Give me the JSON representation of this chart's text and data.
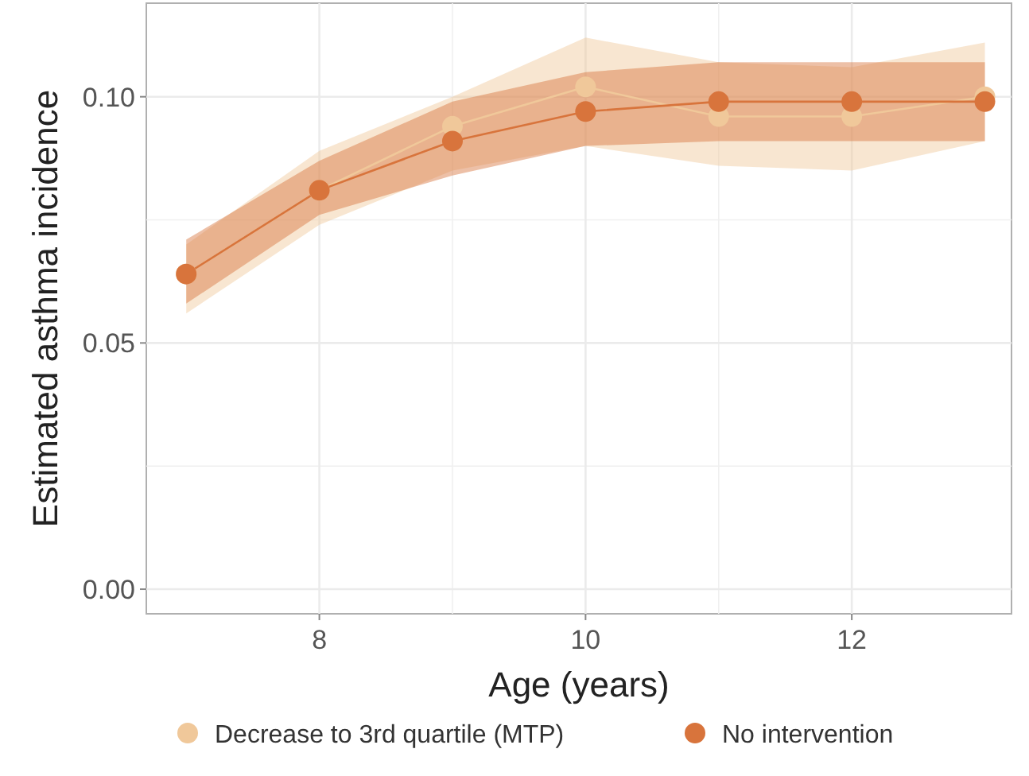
{
  "chart_data": {
    "type": "line",
    "xlabel": "Age (years)",
    "ylabel": "Estimated asthma incidence",
    "x": [
      7,
      8,
      9,
      10,
      11,
      12,
      13
    ],
    "xlim": [
      6.7,
      13.2
    ],
    "xticks": [
      8,
      10,
      12
    ],
    "ylim": [
      -0.005,
      0.119
    ],
    "yticks": [
      {
        "value": 0,
        "label": "0.00"
      },
      {
        "value": 0.05,
        "label": "0.05"
      },
      {
        "value": 0.1,
        "label": "0.10"
      }
    ],
    "grid": true,
    "legend": "bottom",
    "marker": "circle",
    "series": [
      {
        "name": "Decrease to 3rd quartile (MTP)",
        "color": "#f0c89a",
        "values": [
          0.064,
          0.081,
          0.094,
          0.102,
          0.096,
          0.096,
          0.1
        ],
        "lower": [
          0.056,
          0.074,
          0.085,
          0.09,
          0.086,
          0.085,
          0.091
        ],
        "upper": [
          0.07,
          0.089,
          0.1,
          0.112,
          0.107,
          0.106,
          0.111
        ]
      },
      {
        "name": "No intervention",
        "color": "#d8743c",
        "values": [
          0.064,
          0.081,
          0.091,
          0.097,
          0.099,
          0.099,
          0.099
        ],
        "lower": [
          0.058,
          0.076,
          0.084,
          0.09,
          0.091,
          0.091,
          0.091
        ],
        "upper": [
          0.071,
          0.087,
          0.099,
          0.105,
          0.107,
          0.107,
          0.107
        ]
      }
    ]
  }
}
